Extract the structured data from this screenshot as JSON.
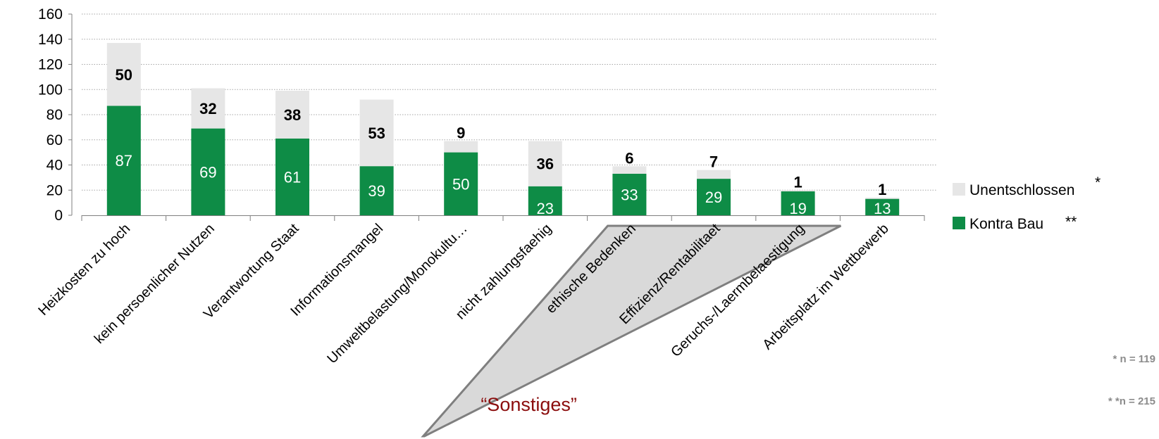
{
  "chart_data": {
    "type": "bar",
    "stacked": true,
    "categories": [
      "Heizkosten zu hoch",
      "kein persoenlicher Nutzen",
      "Verantwortung Staat",
      "Informationsmangel",
      "Umweltbelastung/Monokultu…",
      "nicht zahlungsfaehig",
      "ethische Bedenken",
      "Effizienz/Rentabilitaet",
      "Geruchs-/Laermbelaestigung",
      "Arbeitsplatz im Wettbewerb"
    ],
    "series": [
      {
        "name": "Kontra Bau",
        "marker": "**",
        "color": "#0e8c46",
        "values": [
          87,
          69,
          61,
          39,
          50,
          23,
          33,
          29,
          19,
          13
        ]
      },
      {
        "name": "Unentschlossen",
        "marker": "*",
        "color": "#e6e6e6",
        "values": [
          50,
          32,
          38,
          53,
          9,
          36,
          6,
          7,
          1,
          1
        ]
      }
    ],
    "ylim": [
      0,
      160
    ],
    "yticks": [
      0,
      20,
      40,
      60,
      80,
      100,
      120,
      140,
      160
    ],
    "grid": true,
    "legend_position": "right",
    "group_annotation": {
      "label": "“Sonstiges”",
      "first_category": 6,
      "last_category": 8
    },
    "notes": [
      "* n = 119",
      "* *n = 215"
    ]
  }
}
